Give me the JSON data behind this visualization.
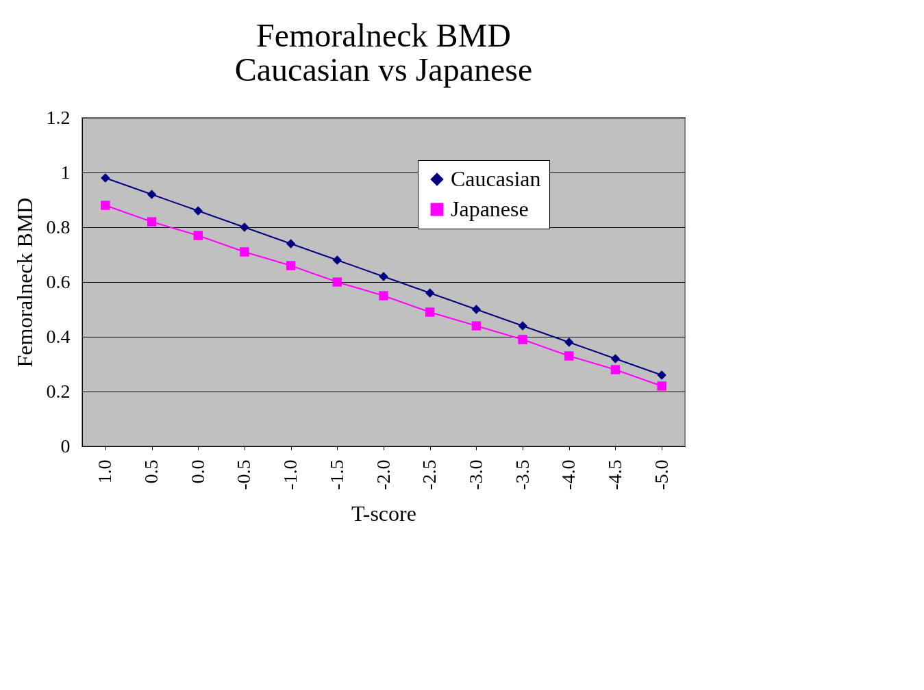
{
  "chart_data": {
    "type": "line",
    "title": [
      "Femoralneck BMD",
      "Caucasian vs Japanese"
    ],
    "xlabel": "T-score",
    "ylabel": "Femoralneck BMD",
    "categories": [
      "1.0",
      "0.5",
      "0.0",
      "-0.5",
      "-1.0",
      "-1.5",
      "-2.0",
      "-2.5",
      "-3.0",
      "-3.5",
      "-4.0",
      "-4.5",
      "-5.0"
    ],
    "series": [
      {
        "name": "Caucasian",
        "color": "#000080",
        "marker": "diamond",
        "values": [
          0.98,
          0.92,
          0.86,
          0.8,
          0.74,
          0.68,
          0.62,
          0.56,
          0.5,
          0.44,
          0.38,
          0.32,
          0.26
        ]
      },
      {
        "name": "Japanese",
        "color": "#ff00ff",
        "marker": "square",
        "values": [
          0.88,
          0.82,
          0.77,
          0.71,
          0.66,
          0.6,
          0.55,
          0.49,
          0.44,
          0.39,
          0.33,
          0.28,
          0.22
        ]
      }
    ],
    "ylim": [
      0,
      1.2
    ],
    "yticks": [
      0,
      0.2,
      0.4,
      0.6,
      0.8,
      1,
      1.2
    ],
    "grid": "y",
    "legend": "top right",
    "line_style": "solid"
  }
}
